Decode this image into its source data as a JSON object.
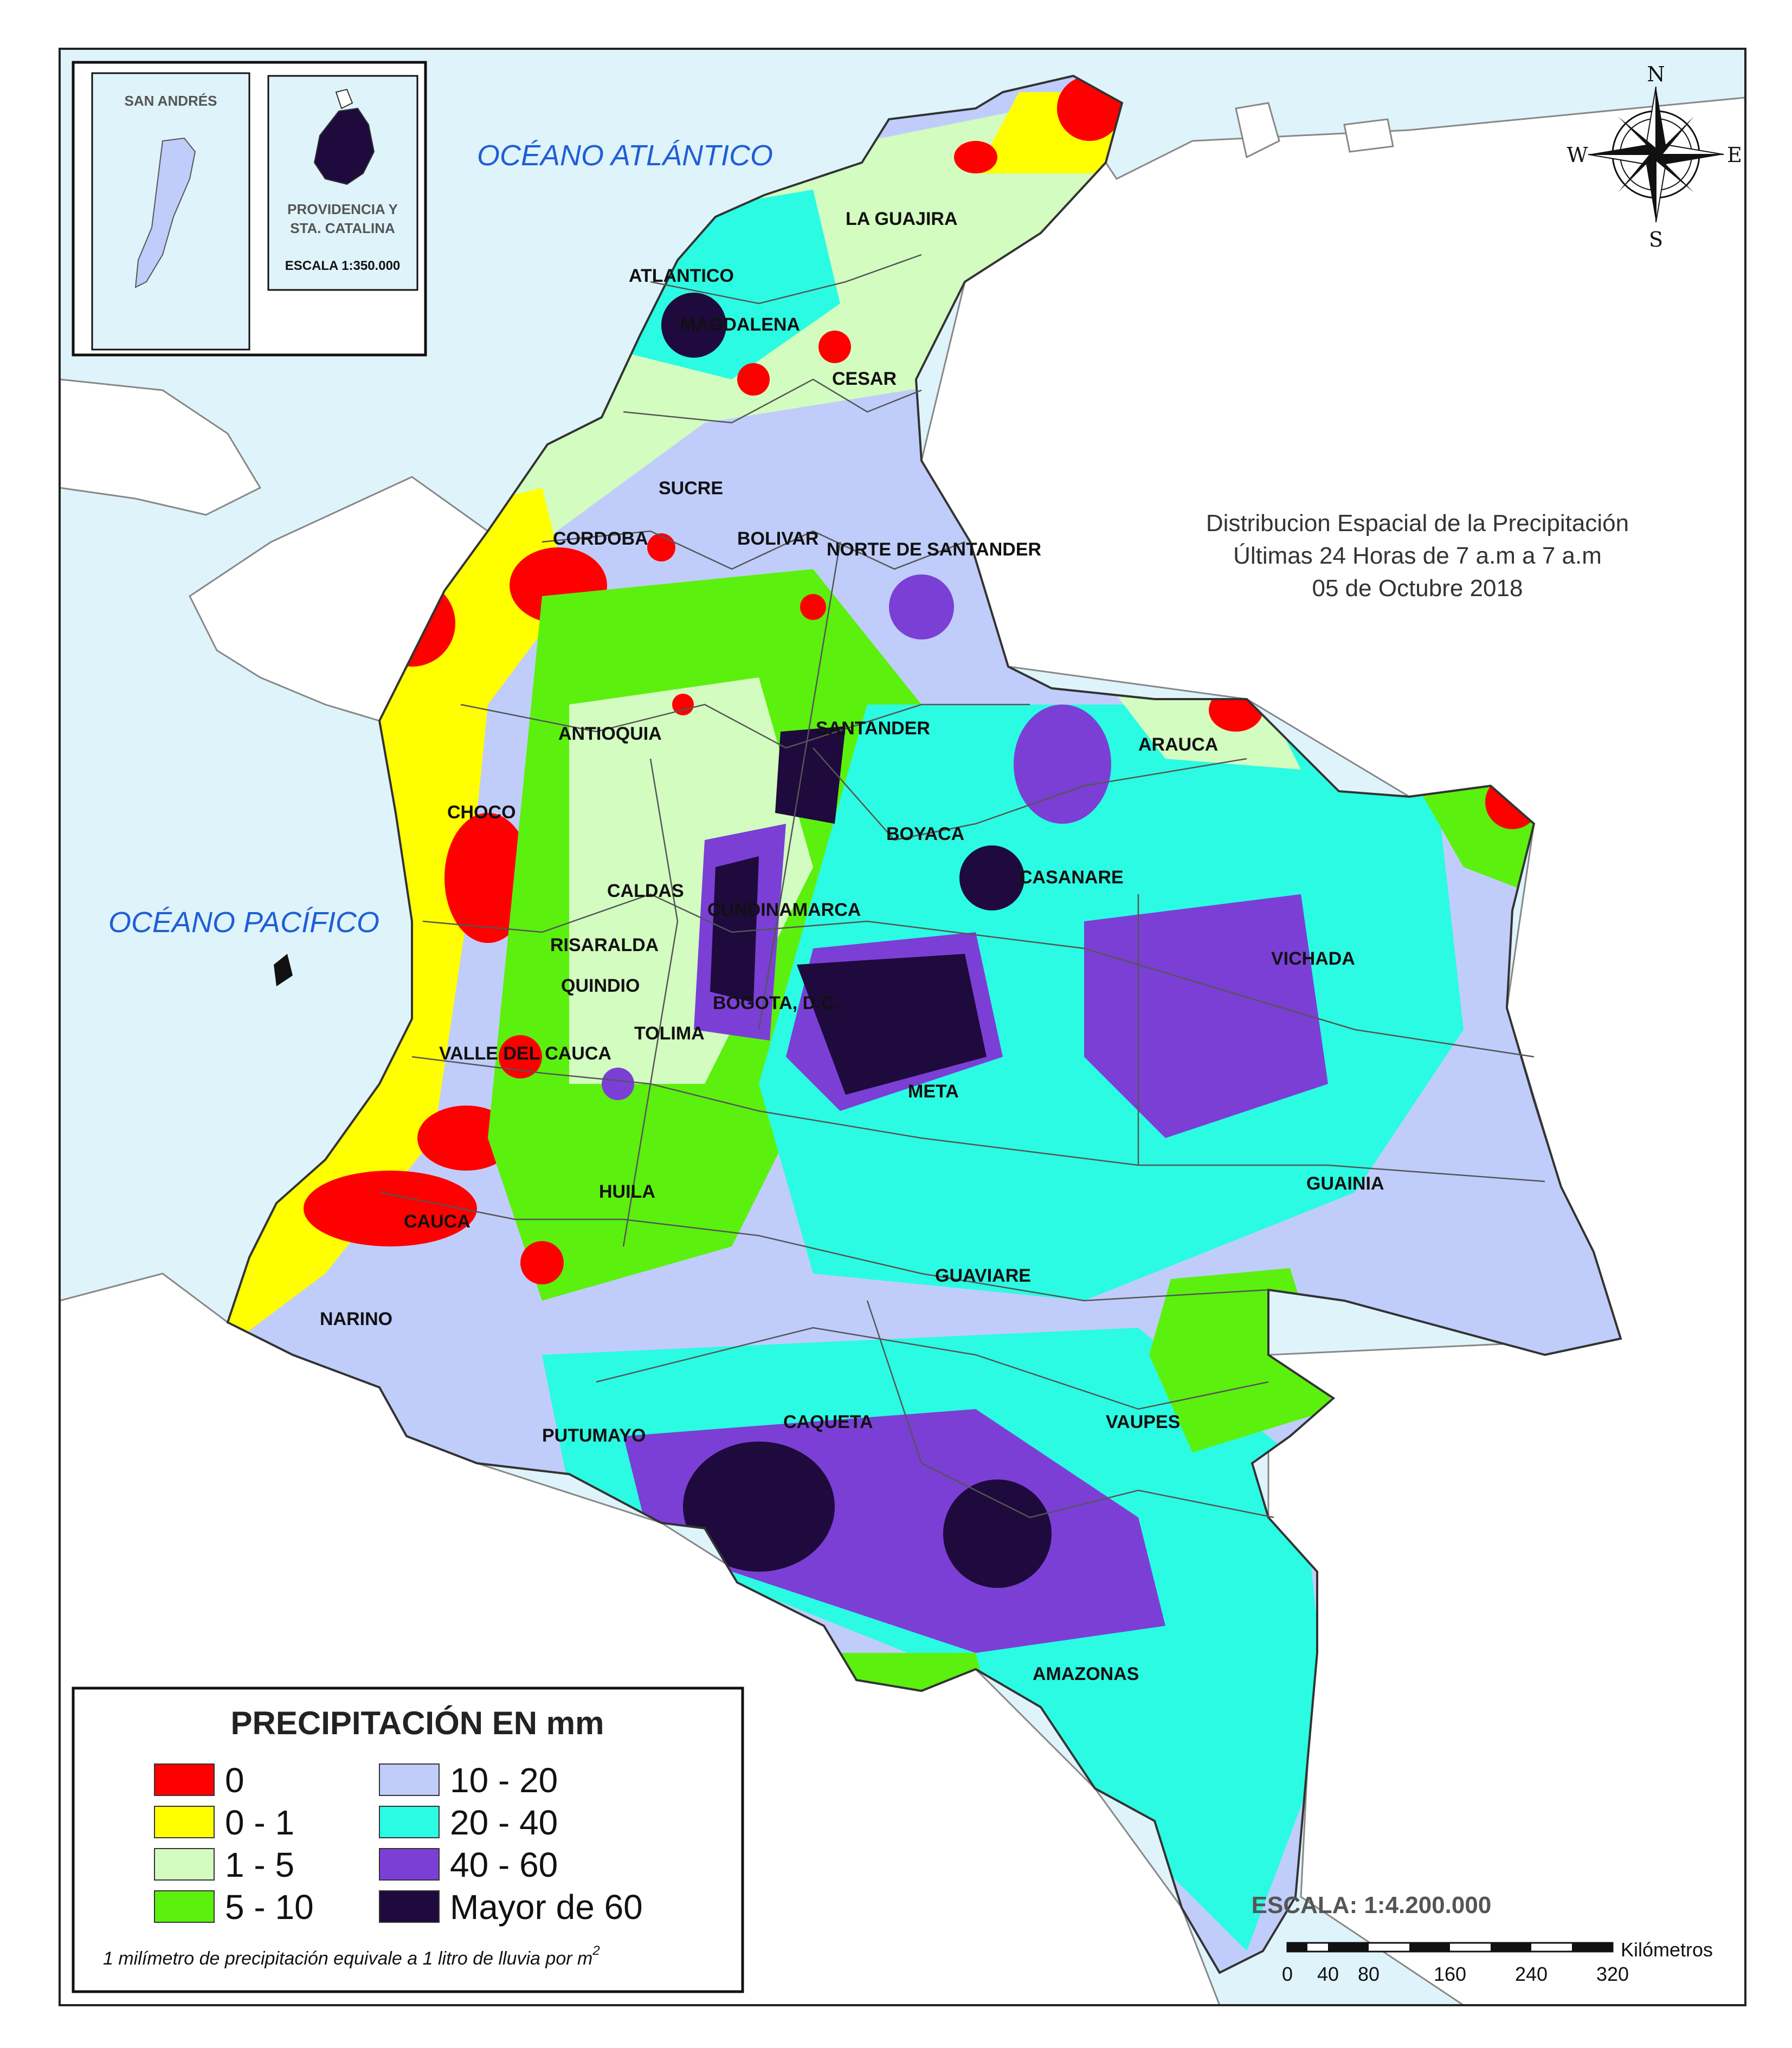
{
  "oceans": {
    "atlantic": "OCÉANO ATLÁNTICO",
    "pacific": "OCÉANO PACÍFICO"
  },
  "title": {
    "line1": "Distribucion Espacial de la Precipitación",
    "line2": "Últimas 24 Horas de 7 a.m  a  7 a.m",
    "line3": "05 de Octubre 2018"
  },
  "inset": {
    "san_andres": "SAN ANDRÉS",
    "providencia_line1": "PROVIDENCIA Y",
    "providencia_line2": "STA. CATALINA",
    "scale": "ESCALA 1:350.000"
  },
  "compass": {
    "n": "N",
    "s": "S",
    "e": "E",
    "w": "W"
  },
  "departments": [
    "LA GUAJIRA",
    "ATLANTICO",
    "MAGDALENA",
    "CESAR",
    "SUCRE",
    "BOLIVAR",
    "NORTE DE SANTANDER",
    "CORDOBA",
    "ANTIOQUIA",
    "SANTANDER",
    "ARAUCA",
    "CHOCO",
    "BOYACA",
    "CASANARE",
    "CALDAS",
    "CUNDINAMARCA",
    "RISARALDA",
    "VICHADA",
    "QUINDIO",
    "BOGOTA, D.C.",
    "TOLIMA",
    "VALLE DEL CAUCA",
    "META",
    "GUAINIA",
    "HUILA",
    "CAUCA",
    "GUAVIARE",
    "NARINO",
    "VAUPES",
    "PUTUMAYO",
    "CAQUETA",
    "AMAZONAS"
  ],
  "legend": {
    "title": "PRECIPITACIÓN EN mm",
    "items": [
      {
        "label": "0",
        "color": "#ff0000"
      },
      {
        "label": "0 - 1",
        "color": "#ffff00"
      },
      {
        "label": "1 - 5",
        "color": "#d3fcc0"
      },
      {
        "label": "5 - 10",
        "color": "#5cf00f"
      },
      {
        "label": "10 - 20",
        "color": "#c0cdfb"
      },
      {
        "label": "20 - 40",
        "color": "#2bfbe2"
      },
      {
        "label": "40 - 60",
        "color": "#7b3fd6"
      },
      {
        "label": "Mayor de 60",
        "color": "#1e0a3c"
      }
    ],
    "note": "1 milímetro de precipitación equivale a 1 litro de lluvia por m",
    "note_sup": "2"
  },
  "scale": {
    "title": "ESCALA: 1:4.200.000",
    "unit": "Kilómetros",
    "ticks": [
      "0",
      "40",
      "80",
      "160",
      "240",
      "320"
    ]
  }
}
